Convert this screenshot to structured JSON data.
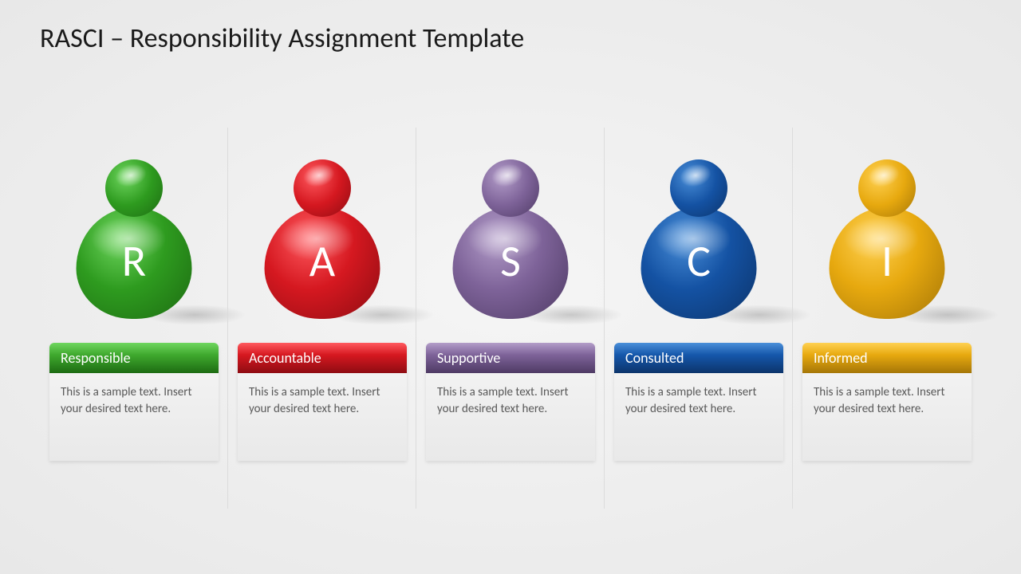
{
  "title": "RASCI – Responsibility Assignment Template",
  "background_color": "#efefef",
  "divider_color": "#dcdcdc",
  "body_text_color": "#595959",
  "label_text_color": "#ffffff",
  "pawn_letter_color": "#ffffff",
  "pawn_letter_fontsize": 56,
  "title_fontsize": 34,
  "label_fontsize": 18,
  "body_fontsize": 15,
  "items": [
    {
      "letter": "R",
      "label": "Responsible",
      "desc": "This is a sample text. Insert your desired text here.",
      "color_base": "#2e9b1f",
      "color_dark": "#1d6b12",
      "color_light": "#6fd65f",
      "header_bg": "#3fa92e"
    },
    {
      "letter": "A",
      "label": "Accountable",
      "desc": "This is a sample text. Insert your desired text here.",
      "color_base": "#d51820",
      "color_dark": "#8e0c12",
      "color_light": "#ff5a5f",
      "header_bg": "#d61820"
    },
    {
      "letter": "S",
      "label": "Supportive",
      "desc": "This is a sample text. Insert your desired text here.",
      "color_base": "#7e6399",
      "color_dark": "#4e3a64",
      "color_light": "#b39dc9",
      "header_bg": "#7e6399"
    },
    {
      "letter": "C",
      "label": "Consulted",
      "desc": "This is a sample text. Insert your desired text here.",
      "color_base": "#1452a3",
      "color_dark": "#0c346b",
      "color_light": "#4a8fd9",
      "header_bg": "#1557ab"
    },
    {
      "letter": "I",
      "label": "Informed",
      "desc": "This is a sample text. Insert your desired text here.",
      "color_base": "#e7a90f",
      "color_dark": "#a57607",
      "color_light": "#ffd152",
      "header_bg": "#e7a90f"
    }
  ]
}
